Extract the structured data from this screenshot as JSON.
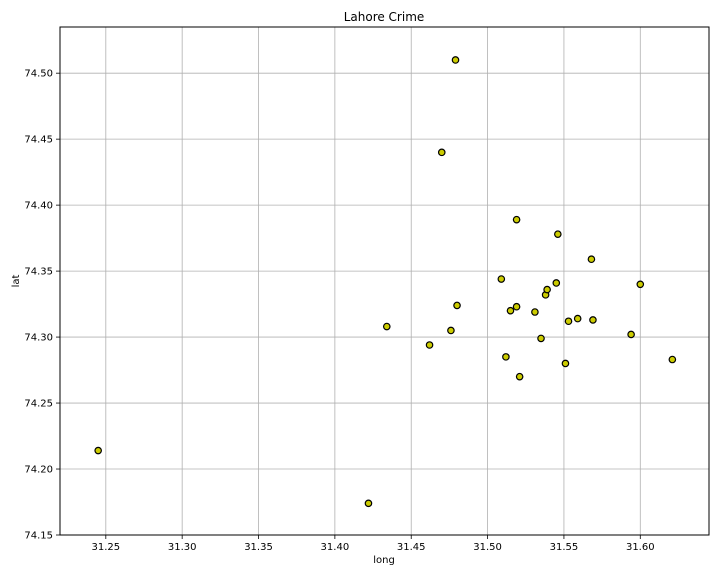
{
  "chart_data": {
    "type": "scatter",
    "title": "Lahore Crime",
    "xlabel": "long",
    "ylabel": "lat",
    "xlim": [
      31.22,
      31.645
    ],
    "ylim": [
      74.15,
      74.535
    ],
    "xticks": [
      31.25,
      31.3,
      31.35,
      31.4,
      31.45,
      31.5,
      31.55,
      31.6
    ],
    "yticks": [
      74.15,
      74.2,
      74.25,
      74.3,
      74.35,
      74.4,
      74.45,
      74.5
    ],
    "xtick_labels": [
      "31.25",
      "31.30",
      "31.35",
      "31.40",
      "31.45",
      "31.50",
      "31.55",
      "31.60"
    ],
    "ytick_labels": [
      "74.15",
      "74.20",
      "74.25",
      "74.30",
      "74.35",
      "74.40",
      "74.45",
      "74.50"
    ],
    "grid": true,
    "marker_fill": "#cccc00",
    "marker_edge": "#000000",
    "grid_color": "#b0b0b0",
    "points": [
      {
        "x": 31.245,
        "y": 74.214
      },
      {
        "x": 31.422,
        "y": 74.174
      },
      {
        "x": 31.434,
        "y": 74.308
      },
      {
        "x": 31.462,
        "y": 74.294
      },
      {
        "x": 31.47,
        "y": 74.44
      },
      {
        "x": 31.476,
        "y": 74.305
      },
      {
        "x": 31.479,
        "y": 74.51
      },
      {
        "x": 31.48,
        "y": 74.324
      },
      {
        "x": 31.509,
        "y": 74.344
      },
      {
        "x": 31.512,
        "y": 74.285
      },
      {
        "x": 31.515,
        "y": 74.32
      },
      {
        "x": 31.519,
        "y": 74.323
      },
      {
        "x": 31.519,
        "y": 74.389
      },
      {
        "x": 31.521,
        "y": 74.27
      },
      {
        "x": 31.531,
        "y": 74.319
      },
      {
        "x": 31.535,
        "y": 74.299
      },
      {
        "x": 31.538,
        "y": 74.332
      },
      {
        "x": 31.539,
        "y": 74.336
      },
      {
        "x": 31.545,
        "y": 74.341
      },
      {
        "x": 31.546,
        "y": 74.378
      },
      {
        "x": 31.551,
        "y": 74.28
      },
      {
        "x": 31.553,
        "y": 74.312
      },
      {
        "x": 31.559,
        "y": 74.314
      },
      {
        "x": 31.568,
        "y": 74.359
      },
      {
        "x": 31.569,
        "y": 74.313
      },
      {
        "x": 31.594,
        "y": 74.302
      },
      {
        "x": 31.6,
        "y": 74.34
      },
      {
        "x": 31.621,
        "y": 74.283
      }
    ]
  }
}
